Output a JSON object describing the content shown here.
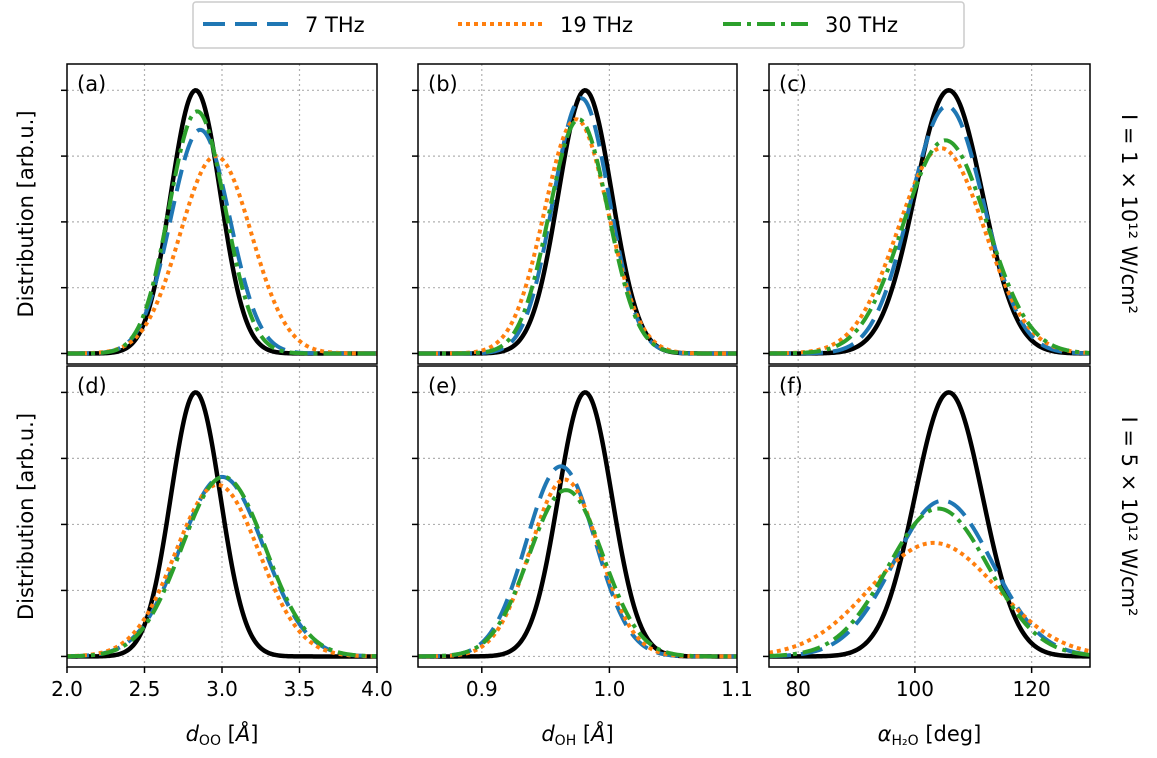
{
  "legend": {
    "entries": [
      {
        "label": "7 THz",
        "color": "#1f77b4",
        "style": "dashed"
      },
      {
        "label": "19 THz",
        "color": "#ff7f0e",
        "style": "dotted"
      },
      {
        "label": "30 THz",
        "color": "#2ca02c",
        "style": "dashdot"
      }
    ],
    "placement": "top-center"
  },
  "y_axis_label": "Distribution [arb.u.]",
  "row_labels": [
    "I = 1 × 10¹² W/cm²",
    "I = 5 × 10¹² W/cm²"
  ],
  "reference_color": "#000000",
  "chart_data": [
    {
      "panel": "(a)",
      "type": "line",
      "row": 0,
      "col": 0,
      "xlim": [
        2.0,
        4.0
      ],
      "xticks": [
        2.0,
        2.5,
        3.0,
        3.5,
        4.0
      ],
      "series": [
        {
          "style": "reference",
          "mu": 2.83,
          "sigma": 0.16,
          "peak": 1.0
        },
        {
          "name": "7 THz",
          "mu": 2.86,
          "sigma": 0.19,
          "peak": 0.85
        },
        {
          "name": "19 THz",
          "mu": 2.96,
          "sigma": 0.23,
          "peak": 0.75
        },
        {
          "name": "30 THz",
          "mu": 2.84,
          "sigma": 0.18,
          "peak": 0.92
        }
      ]
    },
    {
      "panel": "(b)",
      "type": "line",
      "row": 0,
      "col": 1,
      "xlim": [
        0.85,
        1.1
      ],
      "xticks": [
        0.9,
        1.0,
        1.1
      ],
      "series": [
        {
          "style": "reference",
          "mu": 0.981,
          "sigma": 0.021,
          "peak": 1.0
        },
        {
          "name": "7 THz",
          "mu": 0.978,
          "sigma": 0.022,
          "peak": 0.97
        },
        {
          "name": "19 THz",
          "mu": 0.974,
          "sigma": 0.025,
          "peak": 0.89
        },
        {
          "name": "30 THz",
          "mu": 0.976,
          "sigma": 0.023,
          "peak": 0.89
        }
      ]
    },
    {
      "panel": "(c)",
      "type": "line",
      "row": 0,
      "col": 2,
      "xlim": [
        75,
        130
      ],
      "xticks": [
        80,
        100,
        120
      ],
      "series": [
        {
          "style": "reference",
          "mu": 105.8,
          "sigma": 5.8,
          "peak": 1.0
        },
        {
          "name": "7 THz",
          "mu": 105.5,
          "sigma": 6.3,
          "peak": 0.94
        },
        {
          "name": "19 THz",
          "mu": 104.5,
          "sigma": 7.4,
          "peak": 0.78
        },
        {
          "name": "30 THz",
          "mu": 105.2,
          "sigma": 7.2,
          "peak": 0.81
        }
      ]
    },
    {
      "panel": "(d)",
      "type": "line",
      "row": 1,
      "col": 0,
      "xlim": [
        2.0,
        4.0
      ],
      "xticks": [
        2.0,
        2.5,
        3.0,
        3.5,
        4.0
      ],
      "series": [
        {
          "style": "reference",
          "mu": 2.83,
          "sigma": 0.16,
          "peak": 1.0
        },
        {
          "name": "7 THz",
          "mu": 3.0,
          "sigma": 0.27,
          "peak": 0.68
        },
        {
          "name": "19 THz",
          "mu": 2.97,
          "sigma": 0.27,
          "peak": 0.65
        },
        {
          "name": "30 THz",
          "mu": 3.01,
          "sigma": 0.27,
          "peak": 0.68
        }
      ]
    },
    {
      "panel": "(e)",
      "type": "line",
      "row": 1,
      "col": 1,
      "xlim": [
        0.85,
        1.1
      ],
      "xticks": [
        0.9,
        1.0,
        1.1
      ],
      "series": [
        {
          "style": "reference",
          "mu": 0.981,
          "sigma": 0.021,
          "peak": 1.0
        },
        {
          "name": "7 THz",
          "mu": 0.962,
          "sigma": 0.027,
          "peak": 0.72
        },
        {
          "name": "19 THz",
          "mu": 0.965,
          "sigma": 0.027,
          "peak": 0.67
        },
        {
          "name": "30 THz",
          "mu": 0.966,
          "sigma": 0.029,
          "peak": 0.63
        }
      ]
    },
    {
      "panel": "(f)",
      "type": "line",
      "row": 1,
      "col": 2,
      "xlim": [
        75,
        130
      ],
      "xticks": [
        80,
        100,
        120
      ],
      "series": [
        {
          "style": "reference",
          "mu": 105.8,
          "sigma": 5.8,
          "peak": 1.0
        },
        {
          "name": "7 THz",
          "mu": 104.8,
          "sigma": 8.4,
          "peak": 0.59
        },
        {
          "name": "19 THz",
          "mu": 103.2,
          "sigma": 10.8,
          "peak": 0.43
        },
        {
          "name": "30 THz",
          "mu": 104.0,
          "sigma": 8.6,
          "peak": 0.56
        }
      ]
    }
  ]
}
